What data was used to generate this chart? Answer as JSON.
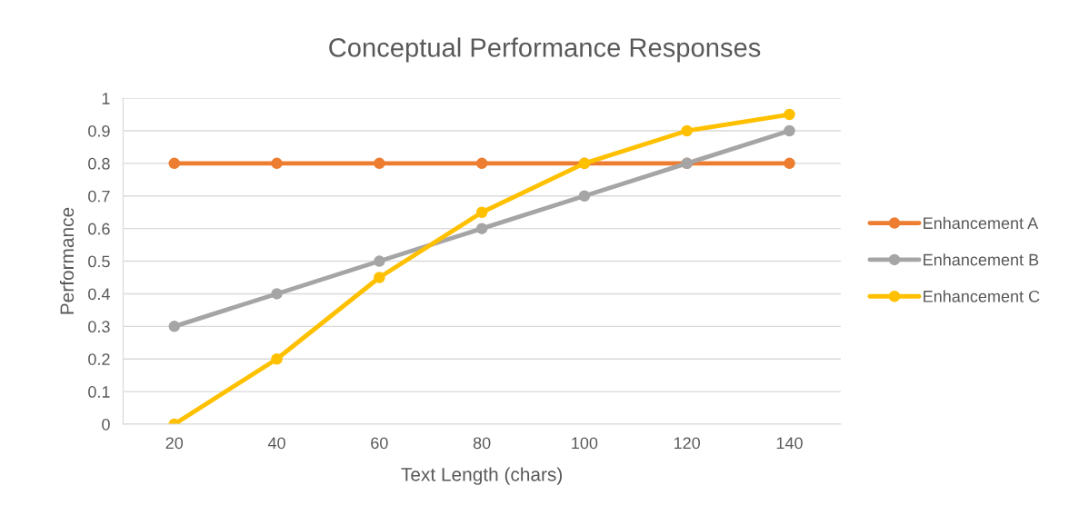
{
  "chart_data": {
    "type": "line",
    "title": "Conceptual Performance Responses",
    "xlabel": "Text Length (chars)",
    "ylabel": "Performance",
    "categories": [
      "20",
      "40",
      "60",
      "80",
      "100",
      "120",
      "140"
    ],
    "series": [
      {
        "name": "Enhancement A",
        "color": "#ed7d31",
        "values": [
          0.8,
          0.8,
          0.8,
          0.8,
          0.8,
          0.8,
          0.8
        ]
      },
      {
        "name": "Enhancement B",
        "color": "#a5a5a5",
        "values": [
          0.3,
          0.4,
          0.5,
          0.6,
          0.7,
          0.8,
          0.9
        ]
      },
      {
        "name": "Enhancement C",
        "color": "#ffc000",
        "values": [
          0,
          0.2,
          0.45,
          0.65,
          0.8,
          0.9,
          0.95
        ]
      }
    ],
    "ylim": [
      0,
      1
    ],
    "yticks": [
      0,
      0.1,
      0.2,
      0.3,
      0.4,
      0.5,
      0.6,
      0.7,
      0.8,
      0.9,
      1
    ],
    "grid": "y",
    "legend": "right",
    "marker": "circle",
    "line_style": "solid"
  }
}
